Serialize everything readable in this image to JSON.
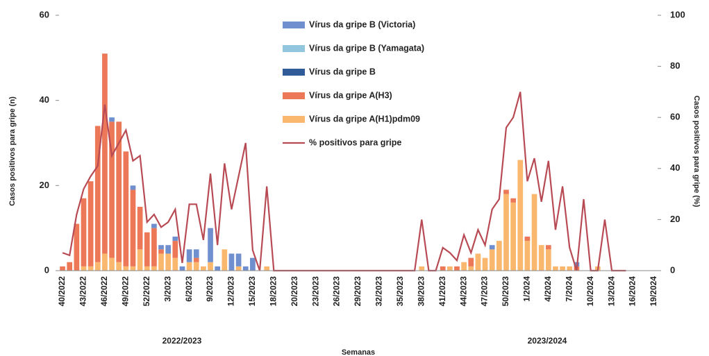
{
  "chart_data": {
    "type": "bar",
    "x_label": "Semanas",
    "y_label": "Casos positivos para gripe (n)",
    "y2_label": "Casos positivos para gripe (%)",
    "seasons": [
      "2022/2023",
      "2023/2024"
    ],
    "categories": [
      "40/2022",
      null,
      null,
      "43/2022",
      null,
      null,
      "46/2022",
      null,
      null,
      "49/2022",
      null,
      null,
      "52/2022",
      null,
      null,
      "3/2023",
      null,
      null,
      "6/2023",
      null,
      null,
      "9/2023",
      null,
      null,
      "12/2023",
      null,
      null,
      "15/2023",
      null,
      null,
      "18/2023",
      null,
      null,
      "20/2023",
      null,
      null,
      "23/2023",
      null,
      null,
      "26/2023",
      null,
      null,
      "29/2023",
      null,
      null,
      "32/2023",
      null,
      null,
      "35/2023",
      null,
      null,
      "38/2023",
      null,
      null,
      "41/2023",
      null,
      null,
      "44/2023",
      null,
      null,
      "47/2023",
      null,
      null,
      "50/2023",
      null,
      null,
      "1/2024",
      null,
      null,
      "4/2024",
      null,
      null,
      "7/2024",
      null,
      null,
      "10/2024",
      null,
      null,
      "13/2024",
      null,
      null,
      "16/2024",
      null,
      null,
      "19/2024"
    ],
    "series": [
      {
        "name": "Vírus da gripe B (Victoria)",
        "color": "#6f8fcf",
        "values": [
          0,
          0,
          0,
          0,
          0,
          0,
          0,
          1,
          0,
          0,
          1,
          0,
          0,
          1,
          1,
          2,
          1,
          1,
          3,
          2,
          0,
          8,
          1,
          0,
          4,
          3,
          1,
          3,
          0,
          0,
          0,
          0,
          0,
          0,
          0,
          0,
          0,
          0,
          0,
          0,
          0,
          0,
          0,
          0,
          0,
          0,
          0,
          0,
          0,
          0,
          0,
          0,
          0,
          0,
          0,
          0,
          0,
          0,
          0,
          0,
          0,
          1,
          0,
          0,
          0,
          0,
          0,
          0,
          0,
          0,
          0,
          0,
          0,
          1,
          0,
          0,
          0,
          0,
          0,
          0,
          0,
          0,
          0,
          0,
          0
        ]
      },
      {
        "name": "Vírus da gripe B (Yamagata)",
        "color": "#92c5de",
        "values": [
          0,
          0,
          0,
          0,
          0,
          0,
          0,
          0,
          0,
          0,
          0,
          0,
          0,
          0,
          0,
          0,
          0,
          0,
          0,
          0,
          0,
          0,
          0,
          0,
          0,
          0,
          0,
          0,
          0,
          0,
          0,
          0,
          0,
          0,
          0,
          0,
          0,
          0,
          0,
          0,
          0,
          0,
          0,
          0,
          0,
          0,
          0,
          0,
          0,
          0,
          0,
          0,
          0,
          0,
          0,
          0,
          0,
          0,
          0,
          0,
          0,
          0,
          0,
          0,
          0,
          0,
          0,
          0,
          0,
          0,
          0,
          0,
          0,
          0,
          0,
          0,
          0,
          0,
          0,
          0,
          0,
          0,
          0,
          0,
          0
        ]
      },
      {
        "name": "Vírus da gripe B",
        "color": "#2f5c99",
        "values": [
          0,
          0,
          0,
          0,
          0,
          0,
          0,
          0,
          0,
          0,
          0,
          0,
          0,
          0,
          0,
          0,
          0,
          0,
          0,
          0,
          0,
          0,
          0,
          0,
          0,
          0,
          0,
          0,
          0,
          0,
          0,
          0,
          0,
          0,
          0,
          0,
          0,
          0,
          0,
          0,
          0,
          0,
          0,
          0,
          0,
          0,
          0,
          0,
          0,
          0,
          0,
          0,
          0,
          0,
          0,
          0,
          0,
          0,
          0,
          0,
          0,
          0,
          0,
          0,
          0,
          0,
          0,
          0,
          0,
          0,
          0,
          0,
          0,
          0,
          0,
          0,
          0,
          0,
          0,
          0,
          0,
          0,
          0,
          0,
          0
        ]
      },
      {
        "name": "Vírus da gripe A(H3)",
        "color": "#ec7858",
        "values": [
          1,
          2,
          11,
          16,
          20,
          32,
          47,
          32,
          33,
          27,
          18,
          10,
          8,
          9,
          1,
          0,
          4,
          0,
          0,
          1,
          0,
          0,
          0,
          0,
          0,
          0,
          0,
          0,
          0,
          0,
          0,
          0,
          0,
          0,
          0,
          0,
          0,
          0,
          0,
          0,
          0,
          0,
          0,
          0,
          0,
          0,
          0,
          0,
          0,
          0,
          0,
          0,
          0,
          0,
          1,
          0,
          1,
          0,
          2,
          0,
          0,
          0,
          0,
          1,
          1,
          0,
          1,
          0,
          0,
          1,
          0,
          0,
          0,
          1,
          0,
          0,
          0,
          0,
          0,
          0,
          0,
          0,
          0,
          0,
          0
        ]
      },
      {
        "name": "Vírus da gripe A(H1)pdm09",
        "color": "#f9b86e",
        "values": [
          0,
          0,
          0,
          1,
          1,
          2,
          4,
          3,
          2,
          1,
          1,
          5,
          1,
          1,
          4,
          4,
          3,
          0,
          2,
          2,
          1,
          2,
          0,
          5,
          0,
          1,
          0,
          0,
          0,
          1,
          0,
          0,
          0,
          0,
          0,
          0,
          0,
          0,
          0,
          0,
          0,
          0,
          0,
          0,
          0,
          0,
          0,
          0,
          0,
          0,
          0,
          1,
          0,
          0,
          0,
          1,
          0,
          2,
          1,
          4,
          3,
          5,
          7,
          18,
          16,
          26,
          7,
          18,
          6,
          5,
          1,
          1,
          1,
          0,
          0,
          0,
          1,
          0,
          0,
          0,
          0,
          0,
          0,
          0,
          0
        ]
      },
      {
        "name": "% positivos para gripe",
        "type": "line",
        "axis": "y2",
        "color": "#b84a54",
        "values": [
          7,
          6,
          22,
          32,
          37,
          41,
          65,
          45,
          50,
          55,
          43,
          45,
          19,
          22,
          17,
          19,
          24,
          3,
          26,
          26,
          12,
          38,
          10,
          42,
          24,
          37,
          50,
          8,
          0,
          33,
          0,
          0,
          0,
          0,
          0,
          0,
          0,
          0,
          0,
          0,
          0,
          0,
          0,
          0,
          0,
          0,
          0,
          0,
          0,
          0,
          0,
          20,
          0,
          0,
          9,
          7,
          4,
          14,
          7,
          16,
          10,
          24,
          28,
          56,
          60,
          70,
          35,
          44,
          27,
          43,
          16,
          33,
          9,
          0,
          28,
          0,
          0,
          20,
          0,
          0,
          0,
          null,
          null,
          null,
          null
        ]
      }
    ],
    "ylim": [
      0,
      60
    ],
    "yticks": [
      0,
      20,
      40,
      60
    ],
    "y2lim": [
      0,
      100
    ],
    "y2ticks": [
      0,
      20,
      40,
      60,
      80,
      100
    ],
    "stacked": true
  }
}
